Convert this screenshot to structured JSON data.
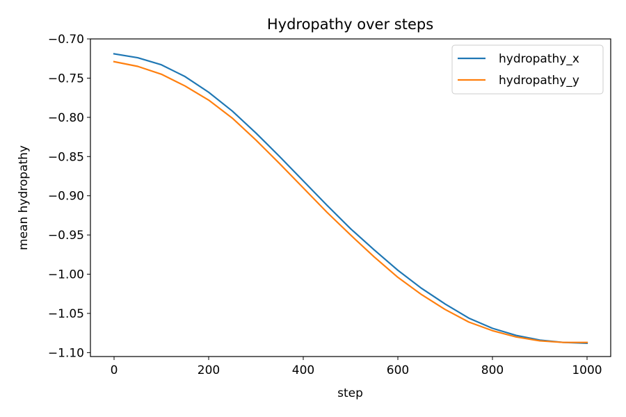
{
  "chart_data": {
    "type": "line",
    "title": "Hydropathy over steps",
    "xlabel": "step",
    "ylabel": "mean hydropathy",
    "xlim": [
      -50,
      1050
    ],
    "ylim": [
      -1.105,
      -0.7
    ],
    "x_ticks": [
      0,
      200,
      400,
      600,
      800,
      1000
    ],
    "x_tick_labels": [
      "0",
      "200",
      "400",
      "600",
      "800",
      "1000"
    ],
    "y_ticks": [
      -0.7,
      -0.75,
      -0.8,
      -0.85,
      -0.9,
      -0.95,
      -1.0,
      -1.05,
      -1.1
    ],
    "y_tick_labels": [
      "−0.70",
      "−0.75",
      "−0.80",
      "−0.85",
      "−0.90",
      "−0.95",
      "−1.00",
      "−1.05",
      "−1.10"
    ],
    "grid": false,
    "legend_position": "top-right",
    "x": [
      0,
      50,
      100,
      150,
      200,
      250,
      300,
      350,
      400,
      450,
      500,
      550,
      600,
      650,
      700,
      750,
      800,
      850,
      900,
      950,
      1000
    ],
    "series": [
      {
        "name": "hydropathy_x",
        "color": "#1f77b4",
        "values": [
          -0.719,
          -0.724,
          -0.733,
          -0.748,
          -0.768,
          -0.792,
          -0.82,
          -0.85,
          -0.881,
          -0.912,
          -0.942,
          -0.969,
          -0.995,
          -1.018,
          -1.038,
          -1.056,
          -1.069,
          -1.078,
          -1.084,
          -1.087,
          -1.088
        ]
      },
      {
        "name": "hydropathy_y",
        "color": "#ff7f0e",
        "values": [
          -0.729,
          -0.735,
          -0.745,
          -0.76,
          -0.778,
          -0.801,
          -0.829,
          -0.859,
          -0.89,
          -0.921,
          -0.95,
          -0.978,
          -1.004,
          -1.026,
          -1.045,
          -1.061,
          -1.072,
          -1.08,
          -1.085,
          -1.087,
          -1.087
        ]
      }
    ]
  }
}
